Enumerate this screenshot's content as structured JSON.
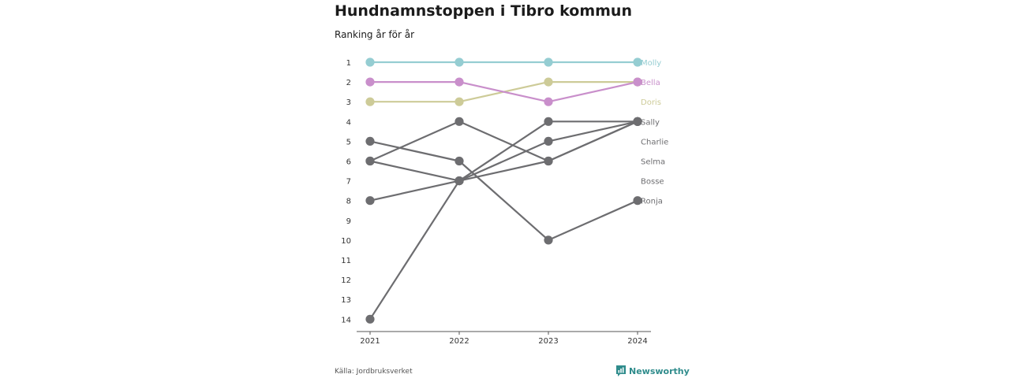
{
  "title": "Hundnamnstoppen i Tibro kommun",
  "subtitle": "Ranking år för år",
  "source": "Källa: Jordbruksverket",
  "brand": "Newsworthy",
  "colors": {
    "teal": "#95cdd2",
    "pink": "#c98fcb",
    "olive": "#cdcb98",
    "gray": "#6d6d70",
    "brand": "#2f8c8c"
  },
  "chart_data": {
    "type": "line",
    "x": [
      "2021",
      "2022",
      "2023",
      "2024"
    ],
    "y_ticks": [
      "1",
      "2",
      "3",
      "4",
      "5",
      "6",
      "7",
      "8",
      "9",
      "10",
      "11",
      "12",
      "13",
      "14"
    ],
    "ylim": [
      1,
      14
    ],
    "y_inverted": true,
    "grid": false,
    "series": [
      {
        "name": "Ronja",
        "values": [
          5,
          6,
          10,
          8
        ],
        "color": "#6d6d70"
      },
      {
        "name": "Bosse",
        "values": [
          6,
          7,
          5,
          4
        ],
        "color": "#6d6d70"
      },
      {
        "name": "Selma",
        "values": [
          6,
          4,
          6,
          4
        ],
        "color": "#6d6d70"
      },
      {
        "name": "Charlie",
        "values": [
          8,
          7,
          6,
          4
        ],
        "color": "#6d6d70"
      },
      {
        "name": "Sally",
        "values": [
          14,
          7,
          4,
          4
        ],
        "color": "#6d6d70"
      },
      {
        "name": "Doris",
        "values": [
          3,
          3,
          2,
          2
        ],
        "color": "#cdcb98"
      },
      {
        "name": "Bella",
        "values": [
          2,
          2,
          3,
          2
        ],
        "color": "#c98fcb"
      },
      {
        "name": "Molly",
        "values": [
          1,
          1,
          1,
          1
        ],
        "color": "#95cdd2"
      }
    ],
    "end_labels": [
      {
        "text": "Molly",
        "rank": 1,
        "color": "#95cdd2"
      },
      {
        "text": "Bella",
        "rank": 2,
        "color": "#c98fcb"
      },
      {
        "text": "Doris",
        "rank": 3,
        "color": "#cdcb98"
      },
      {
        "text": "Sally",
        "rank": 4,
        "color": "#6d6d70"
      },
      {
        "text": "Charlie",
        "rank": 5,
        "color": "#6d6d70"
      },
      {
        "text": "Selma",
        "rank": 6,
        "color": "#6d6d70"
      },
      {
        "text": "Bosse",
        "rank": 7,
        "color": "#6d6d70"
      },
      {
        "text": "Ronja",
        "rank": 8,
        "color": "#6d6d70"
      }
    ]
  }
}
